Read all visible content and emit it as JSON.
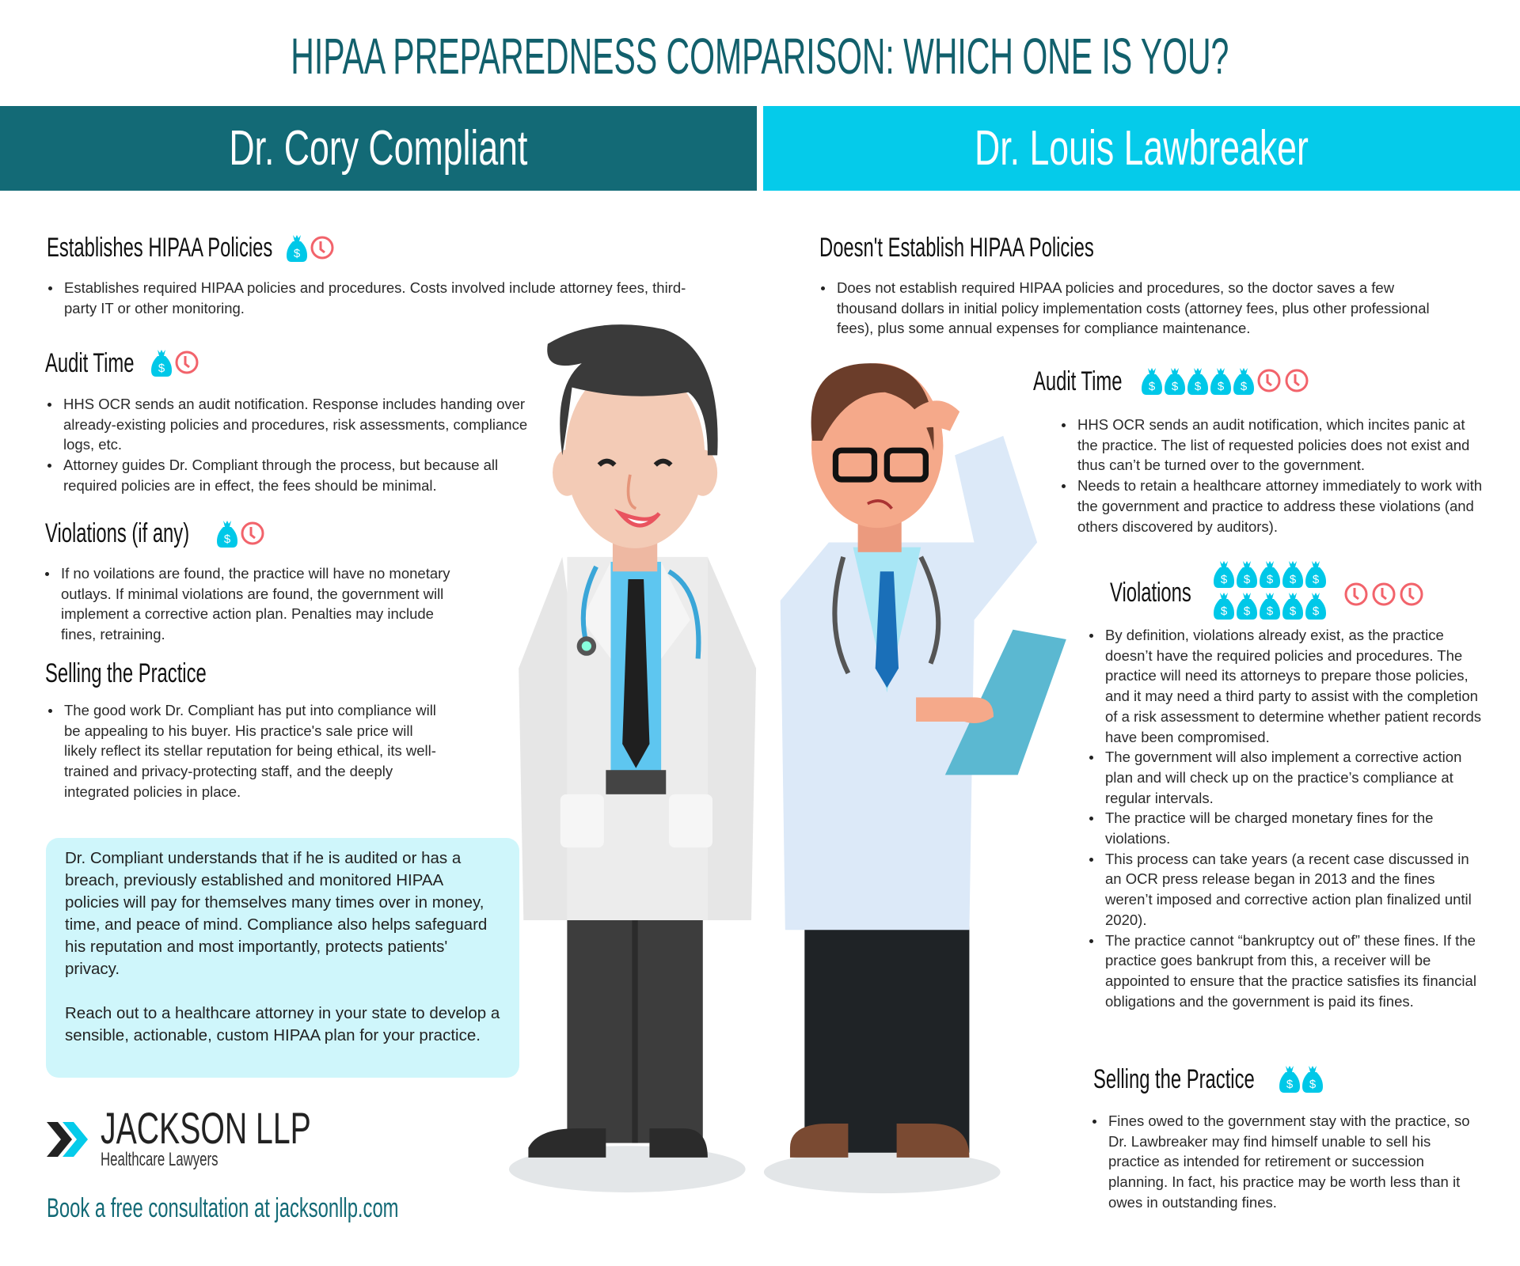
{
  "title": "HIPAA PREPAREDNESS COMPARISON: WHICH ONE IS YOU?",
  "colors": {
    "dark_teal": "#136a76",
    "cyan": "#05cbea",
    "money": "#00c8e8",
    "clock": "#f2636b",
    "box": "#cff6fb"
  },
  "left": {
    "header": "Dr. Cory Compliant",
    "sections": [
      {
        "heading": "Establishes HIPAA Policies",
        "icons": {
          "money": 1,
          "clock": 1
        },
        "bullets": [
          "Establishes required HIPAA policies and procedures.  Costs involved include attorney fees, third-party IT or other monitoring."
        ]
      },
      {
        "heading": "Audit Time",
        "icons": {
          "money": 1,
          "clock": 1
        },
        "bullets": [
          "HHS OCR sends an audit notification. Response includes handing over already-existing policies and procedures, risk assessments, compliance logs, etc.",
          "Attorney guides Dr. Compliant through the process, but because all required policies are in effect, the fees should be minimal."
        ]
      },
      {
        "heading": "Violations (if any)",
        "icons": {
          "money": 1,
          "clock": 1
        },
        "bullets": [
          "If no voilations are found, the practice will have no monetary outlays. If minimal violations are found, the government will implement a corrective action plan. Penalties may include fines, retraining."
        ]
      },
      {
        "heading": "Selling the Practice",
        "icons": {
          "money": 0,
          "clock": 0
        },
        "bullets": [
          "The good work Dr. Compliant has put into compliance will be appealing to his buyer. His practice's sale price will likely reflect its stellar reputation for being ethical, its well-trained and privacy-protecting staff, and the deeply integrated policies in place."
        ]
      }
    ],
    "callout": [
      "Dr. Compliant understands that if he is audited or has a breach, previously established and monitored HIPAA policies will pay for themselves many times over in money, time, and peace of mind. Compliance also helps safeguard his reputation and most importantly, protects patients' privacy.",
      "Reach out to a healthcare attorney in your state to develop a sensible, actionable, custom HIPAA plan for your practice."
    ]
  },
  "right": {
    "header": "Dr. Louis Lawbreaker",
    "sections": [
      {
        "heading": "Doesn't Establish HIPAA Policies",
        "icons": {
          "money": 0,
          "clock": 0
        },
        "bullets": [
          "Does not establish required HIPAA policies and procedures, so the doctor saves a few thousand dollars in initial policy implementation costs (attorney fees, plus other professional fees), plus some annual expenses for compliance maintenance."
        ]
      },
      {
        "heading": "Audit Time",
        "icons": {
          "money": 5,
          "clock": 2
        },
        "bullets": [
          "HHS OCR sends an audit notification, which incites panic at the practice. The list of requested policies does not exist and thus can’t be turned over to the government.",
          "Needs to retain a healthcare attorney immediately to work with the government and practice to address these violations (and others discovered by auditors)."
        ]
      },
      {
        "heading": "Violations",
        "icons": {
          "money": 10,
          "clock": 3
        },
        "bullets": [
          "By definition, violations already exist, as the practice doesn’t have the required policies and procedures. The practice will need its attorneys to prepare those policies, and it may need a third party to assist with the completion of a risk assessment to determine whether patient records have been compromised.",
          "The government will also implement a corrective action plan and will check up on the practice’s compliance at regular intervals.",
          "The practice will be charged monetary fines for the violations.",
          "This process can take years (a recent case discussed in an OCR press release began in 2013 and the fines weren’t imposed and corrective action plan finalized until 2020).",
          "The practice cannot “bankruptcy out of” these fines. If the practice goes bankrupt from this, a receiver will be appointed to ensure that the practice satisfies its financial obligations and the government is paid its fines."
        ]
      },
      {
        "heading": "Selling the Practice",
        "icons": {
          "money": 2,
          "clock": 0
        },
        "bullets": [
          "Fines owed to the government stay with the practice, so Dr. Lawbreaker may find himself unable to sell his practice as intended for retirement or succession planning. In fact, his practice may be worth less than it owes in outstanding fines."
        ]
      }
    ]
  },
  "logo": {
    "name": "JACKSON LLP",
    "tagline": "Healthcare Lawyers"
  },
  "cta": "Book a free consultation at jacksonllp.com"
}
